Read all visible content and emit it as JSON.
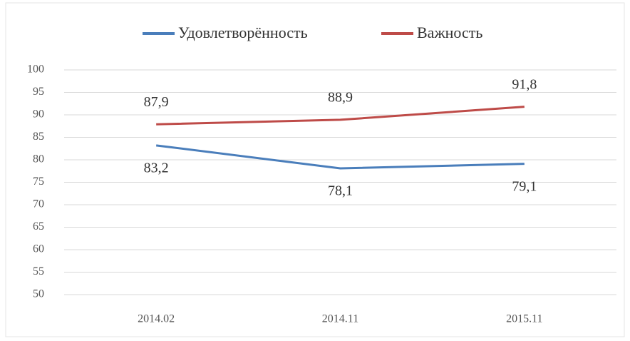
{
  "chart_data": {
    "type": "line",
    "categories": [
      "2014.02",
      "2014.11",
      "2015.11"
    ],
    "series": [
      {
        "name": "Удовлетворённость",
        "color": "#4a7ebb",
        "values": [
          83.2,
          78.1,
          79.1
        ],
        "value_labels": [
          "83,2",
          "78,1",
          "79,1"
        ]
      },
      {
        "name": "Важность",
        "color": "#be4b48",
        "values": [
          87.9,
          88.9,
          91.8
        ],
        "value_labels": [
          "87,9",
          "88,9",
          "91,8"
        ]
      }
    ],
    "ylim": [
      50,
      100
    ],
    "yticks": [
      50,
      55,
      60,
      65,
      70,
      75,
      80,
      85,
      90,
      95,
      100
    ],
    "grid": true,
    "legend": "top"
  }
}
